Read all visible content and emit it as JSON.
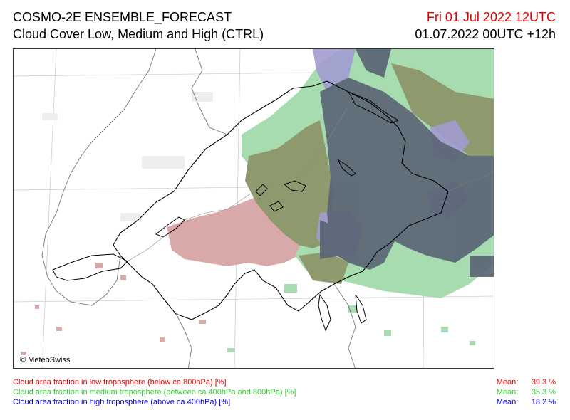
{
  "header": {
    "model": "COSMO-2E ENSEMBLE_FORECAST",
    "product": "Cloud Cover Low, Medium and High (CTRL)",
    "valid_time": "Fri 01 Jul 2022 12UTC",
    "run_time": "01.07.2022 00UTC +12h"
  },
  "map": {
    "credit": "© MeteoSwiss"
  },
  "legend": {
    "rows": [
      {
        "text": "Cloud area fraction in low troposphere (below ca 800hPa) [%]",
        "mean_label": "Mean:",
        "mean_value": "39.3 %",
        "color": "#e00000"
      },
      {
        "text": "Cloud area fraction in medium troposphere (between ca 400hPa and 800hPa) [%]",
        "mean_label": "Mean:",
        "mean_value": "35.3 %",
        "color": "#33cc33"
      },
      {
        "text": "Cloud area fraction in high troposphere (above ca 400hPa) [%]",
        "mean_label": "Mean:",
        "mean_value": "18.2 %",
        "color": "#0000dd"
      }
    ]
  },
  "colors": {
    "low_cloud": "#d9a8a8",
    "medium_cloud": "#a6dcb0",
    "high_cloud": "#a29bd1",
    "low_medium_overlap": "#8e9a6e",
    "all_overlap": "#5b6575",
    "border": "#000000",
    "grid": "#cccccc"
  }
}
